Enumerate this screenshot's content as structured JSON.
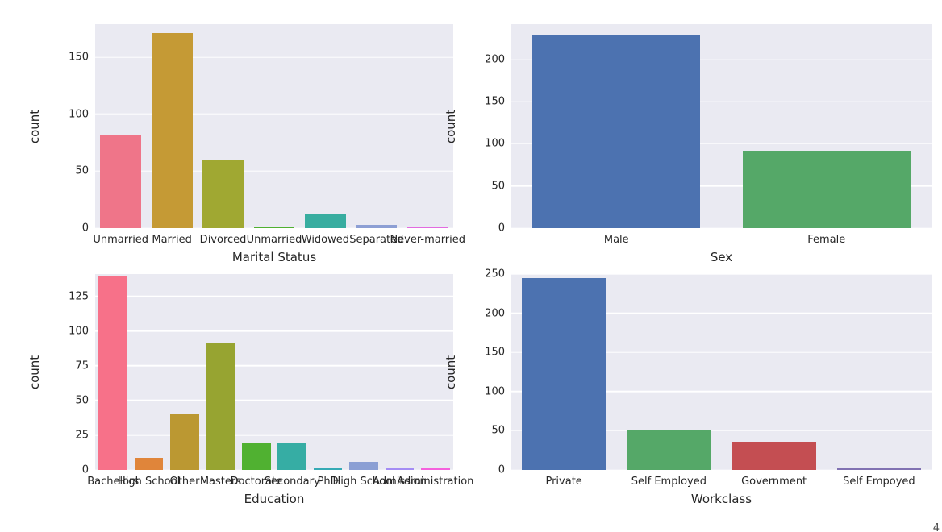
{
  "page": {
    "corner_text": "4"
  },
  "style": {
    "axes_background": "#eaeaf2",
    "grid_color": "#ffffff",
    "text_color": "#262626"
  },
  "chart_data": [
    {
      "type": "bar",
      "title": "",
      "xlabel": "Marital Status",
      "ylabel": "count",
      "categories": [
        "Unmarried",
        "Married",
        "Divorced",
        "Unmarried",
        "Widowed",
        "Separated",
        "Never-married"
      ],
      "values": [
        82,
        171,
        60,
        1,
        13,
        3,
        1
      ],
      "colors": [
        "#ef7589",
        "#c59a35",
        "#a0a832",
        "#4fb031",
        "#38ada0",
        "#8d9fd4",
        "#e26be0"
      ],
      "yticks": [
        0,
        50,
        100,
        150
      ],
      "ymax": 179,
      "grid": true,
      "legend": "none"
    },
    {
      "type": "bar",
      "title": "",
      "xlabel": "Sex",
      "ylabel": "count",
      "categories": [
        "Male",
        "Female"
      ],
      "values": [
        230,
        92
      ],
      "colors": [
        "#4c72b0",
        "#55a868"
      ],
      "yticks": [
        0,
        50,
        100,
        150,
        200
      ],
      "ymax": 242,
      "grid": true,
      "legend": "none"
    },
    {
      "type": "bar",
      "title": "",
      "xlabel": "Education",
      "ylabel": "count",
      "categories": [
        "Bachelors",
        "High School",
        "Other",
        "Masters",
        "Doctorate",
        "Secondary",
        "PhD",
        "High School",
        "Admission",
        "Administration"
      ],
      "values": [
        139,
        9,
        40,
        91,
        20,
        19,
        1,
        6,
        1,
        1
      ],
      "colors": [
        "#f77189",
        "#e0853a",
        "#bb9832",
        "#97a431",
        "#50b131",
        "#36ada4",
        "#36aab5",
        "#8b9fd4",
        "#a48cf4",
        "#f561dd"
      ],
      "yticks": [
        0,
        25,
        50,
        75,
        100,
        125
      ],
      "ymax": 141,
      "grid": true,
      "legend": "none"
    },
    {
      "type": "bar",
      "title": "",
      "xlabel": "Workclass",
      "ylabel": "count",
      "categories": [
        "Private",
        "Self Employed",
        "Government",
        "Self Empoyed"
      ],
      "values": [
        245,
        51,
        36,
        2
      ],
      "colors": [
        "#4c72b0",
        "#55a868",
        "#c44e52",
        "#8172b2"
      ],
      "yticks": [
        0,
        50,
        100,
        150,
        200,
        250
      ],
      "ymax": 250,
      "grid": true,
      "legend": "none"
    }
  ]
}
